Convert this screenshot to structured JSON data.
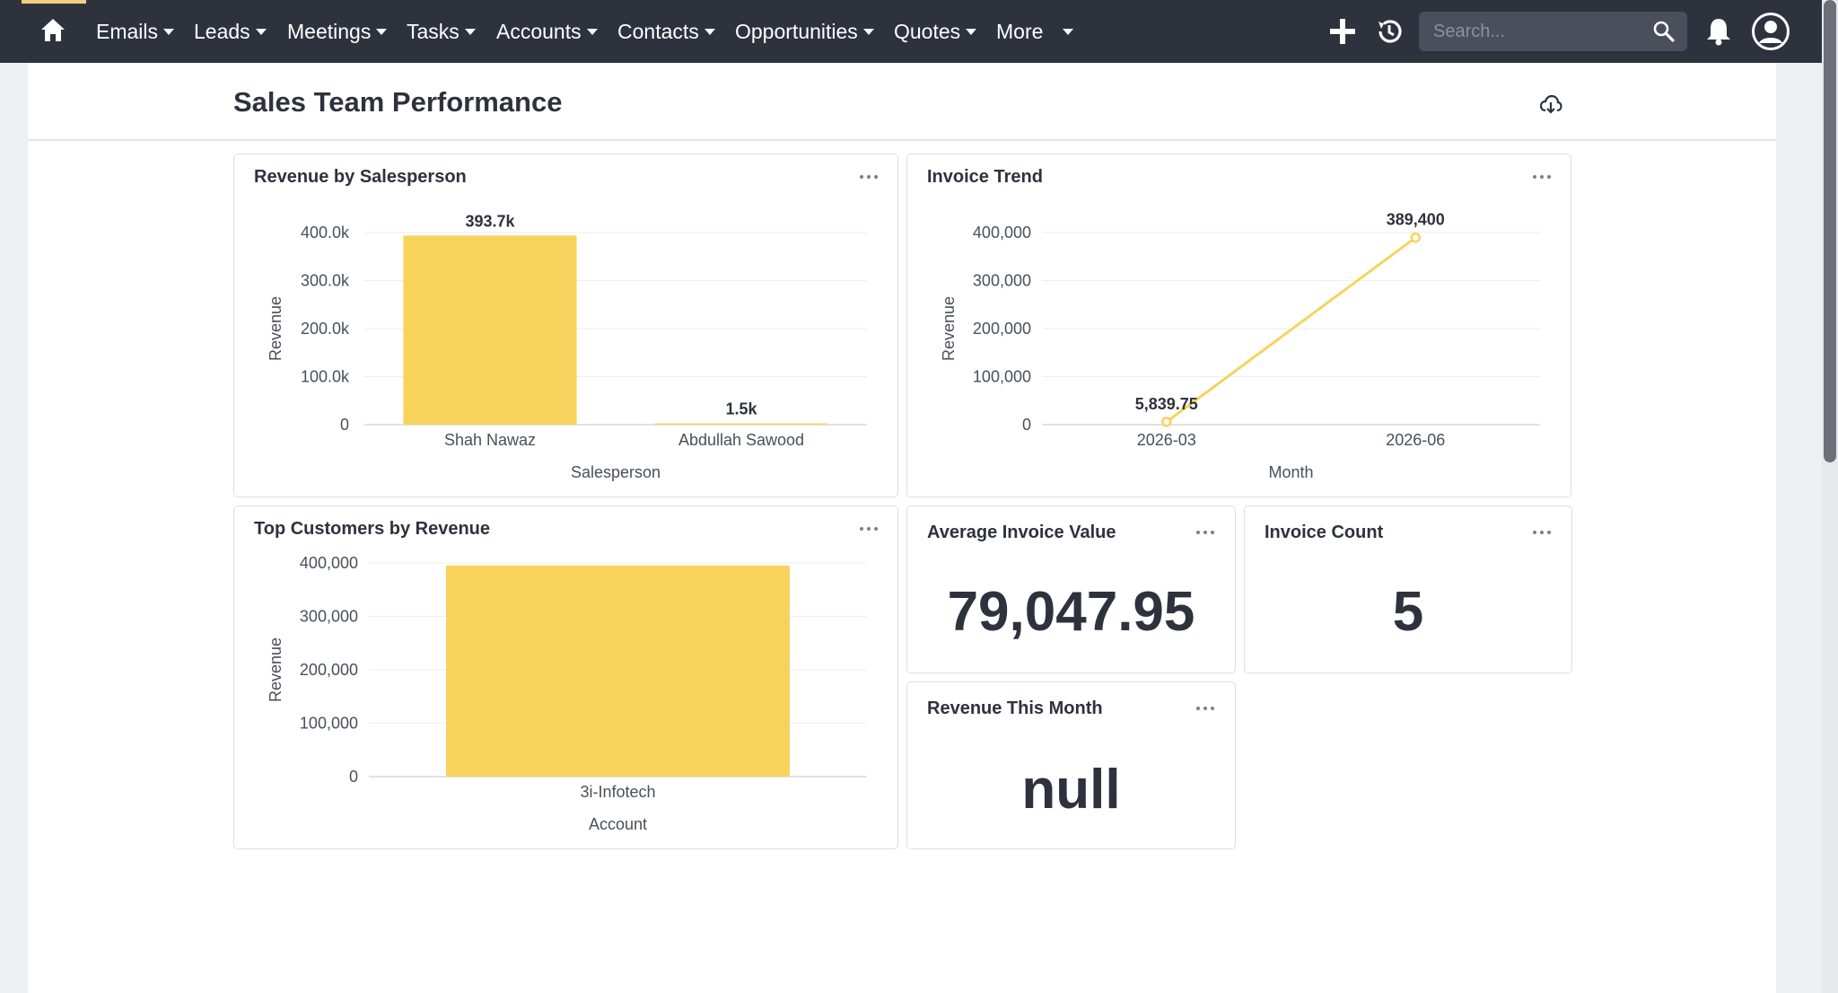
{
  "nav": {
    "items": [
      {
        "label": "Emails",
        "caret": true
      },
      {
        "label": "Leads",
        "caret": true
      },
      {
        "label": "Meetings",
        "caret": true
      },
      {
        "label": "Tasks",
        "caret": true
      },
      {
        "label": "Accounts",
        "caret": true
      },
      {
        "label": "Contacts",
        "caret": true
      },
      {
        "label": "Opportunities",
        "caret": true
      },
      {
        "label": "Quotes",
        "caret": true
      },
      {
        "label": "More",
        "caret": true
      }
    ],
    "search_placeholder": "Search..."
  },
  "dashboard": {
    "title": "Sales Team Performance"
  },
  "cards": {
    "revenue_by_salesperson": {
      "title": "Revenue by Salesperson",
      "chart_data": {
        "type": "bar",
        "categories": [
          "Shah Nawaz",
          "Abdullah Sawood"
        ],
        "values": [
          393700,
          1500
        ],
        "data_labels": [
          "393.7k",
          "1.5k"
        ],
        "xlabel": "Salesperson",
        "ylabel": "Revenue",
        "ylim": [
          0,
          400000
        ],
        "y_ticks": [
          0,
          100000,
          200000,
          300000,
          400000
        ],
        "y_tick_labels": [
          "0",
          "100.0k",
          "200.0k",
          "300.0k",
          "400.0k"
        ],
        "color": "#f7d35d",
        "grid": true
      }
    },
    "invoice_trend": {
      "title": "Invoice Trend",
      "chart_data": {
        "type": "line",
        "x": [
          "2026-03",
          "2026-06"
        ],
        "values": [
          5839.75,
          389400
        ],
        "data_labels": [
          "5,839.75",
          "389,400"
        ],
        "xlabel": "Month",
        "ylabel": "Revenue",
        "ylim": [
          0,
          400000
        ],
        "y_ticks": [
          0,
          100000,
          200000,
          300000,
          400000
        ],
        "y_tick_labels": [
          "0",
          "100,000",
          "200,000",
          "300,000",
          "400,000"
        ],
        "color": "#f7d35d",
        "grid": true
      }
    },
    "top_customers": {
      "title": "Top Customers by Revenue",
      "chart_data": {
        "type": "bar",
        "categories": [
          "3i-Infotech"
        ],
        "values": [
          395200
        ],
        "xlabel": "Account",
        "ylabel": "Revenue",
        "ylim": [
          0,
          400000
        ],
        "y_ticks": [
          0,
          100000,
          200000,
          300000,
          400000
        ],
        "y_tick_labels": [
          "0",
          "100,000",
          "200,000",
          "300,000",
          "400,000"
        ],
        "color": "#f7d35d",
        "grid": true
      }
    },
    "average_invoice": {
      "title": "Average Invoice Value",
      "value": "79,047.95"
    },
    "invoice_count": {
      "title": "Invoice Count",
      "value": "5"
    },
    "revenue_this_month": {
      "title": "Revenue This Month",
      "value": "null"
    }
  },
  "colors": {
    "navbar": "#2e323d",
    "accent": "#f0cf80",
    "bar": "#f7d35d",
    "text": "#2e323d"
  }
}
